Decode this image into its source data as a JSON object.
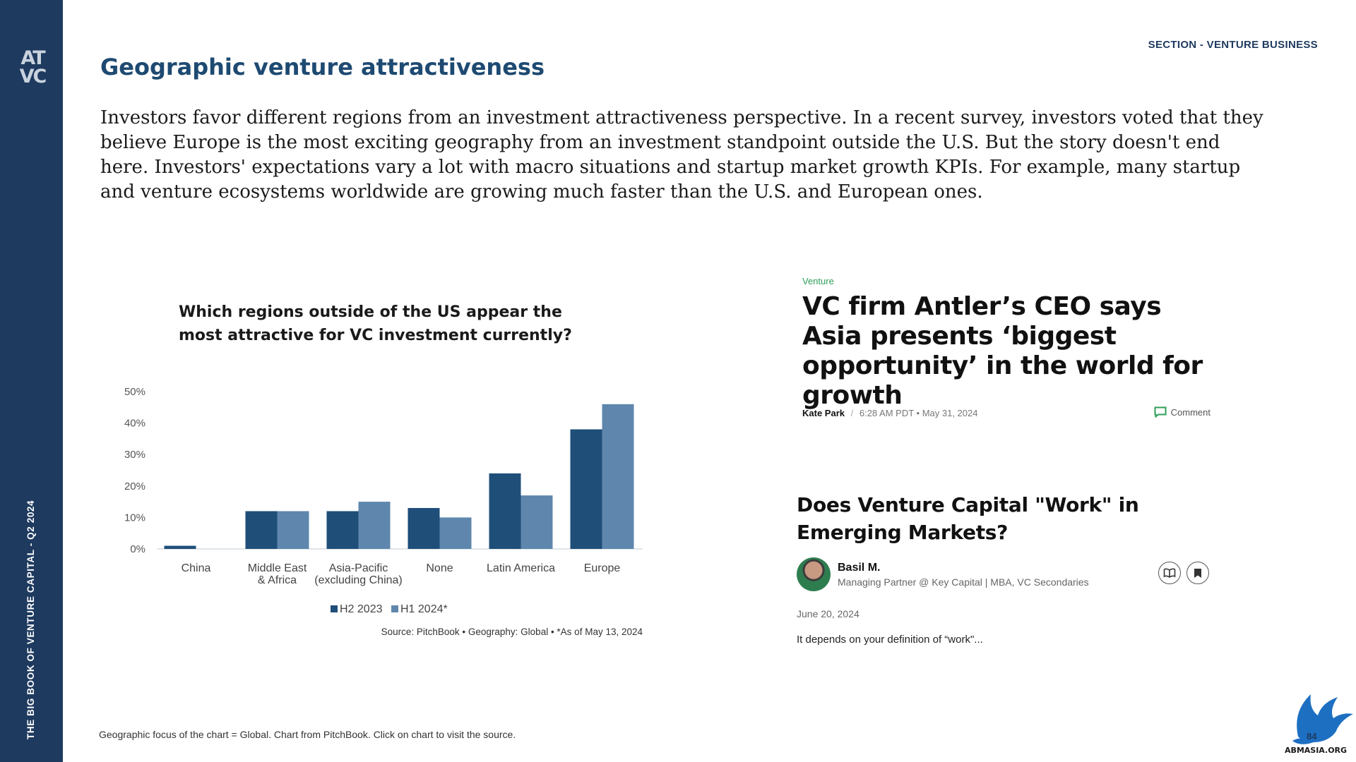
{
  "sidebar": {
    "logo_top": "AT",
    "logo_bottom": "VC",
    "vertical_title": "THE BIG BOOK OF VENTURE CAPITAL - Q2 2024"
  },
  "header": {
    "section_label": "SECTION - VENTURE BUSINESS",
    "title": "Geographic venture attractiveness"
  },
  "intro_text": "Investors favor different regions from an investment attractiveness perspective. In a recent survey, investors voted that they believe Europe is the most exciting geography from an investment standpoint outside the U.S. But the story doesn't end here. Investors' expectations vary a lot with macro situations and startup market growth KPIs. For example, many startup and venture ecosystems worldwide are growing much faster than the U.S. and European ones.",
  "chart_data": {
    "type": "bar",
    "title": "Which regions outside of the US appear the most attractive for VC investment currently?",
    "categories": [
      "China",
      "Middle East\n& Africa",
      "Asia-Pacific\n(excluding China)",
      "None",
      "Latin America",
      "Europe"
    ],
    "series": [
      {
        "name": "H2 2023",
        "color": "#1f4e79",
        "values": [
          1,
          12,
          12,
          13,
          24,
          38
        ]
      },
      {
        "name": "H1 2024*",
        "color": "#5f87ad",
        "values": [
          0,
          12,
          15,
          10,
          17,
          46
        ]
      }
    ],
    "yticks": [
      "0%",
      "10%",
      "20%",
      "30%",
      "40%",
      "50%"
    ],
    "ylim": [
      0,
      50
    ],
    "grid": false,
    "legend_position": "bottom",
    "source": "Source: PitchBook  •  Geography: Global  •  *As of May 13, 2024"
  },
  "article1": {
    "tag": "Venture",
    "headline": "VC firm Antler’s CEO says Asia presents ‘biggest opportunity’ in the world for growth",
    "author": "Kate Park",
    "separator": "/",
    "timestamp": "6:28 AM PDT • May 31, 2024",
    "comment_label": "Comment",
    "accent_color": "#2f9e5a"
  },
  "article2": {
    "headline": "Does Venture Capital \"Work\" in Emerging Markets?",
    "author": "Basil M.",
    "role": "Managing Partner @ Key Capital | MBA, VC Secondaries",
    "date": "June 20, 2024",
    "snippet": "It depends on your definition of “work\"..."
  },
  "footer": {
    "footnote": "Geographic focus of the chart = Global. Chart from PitchBook. Click on chart to visit the source.",
    "page_number": "84",
    "watermark": "ABMASIA.ORG"
  },
  "colors": {
    "sidebar": "#1e3a5f",
    "title": "#1e4a72",
    "bar_dark": "#1f4e79",
    "bar_light": "#5f87ad"
  }
}
